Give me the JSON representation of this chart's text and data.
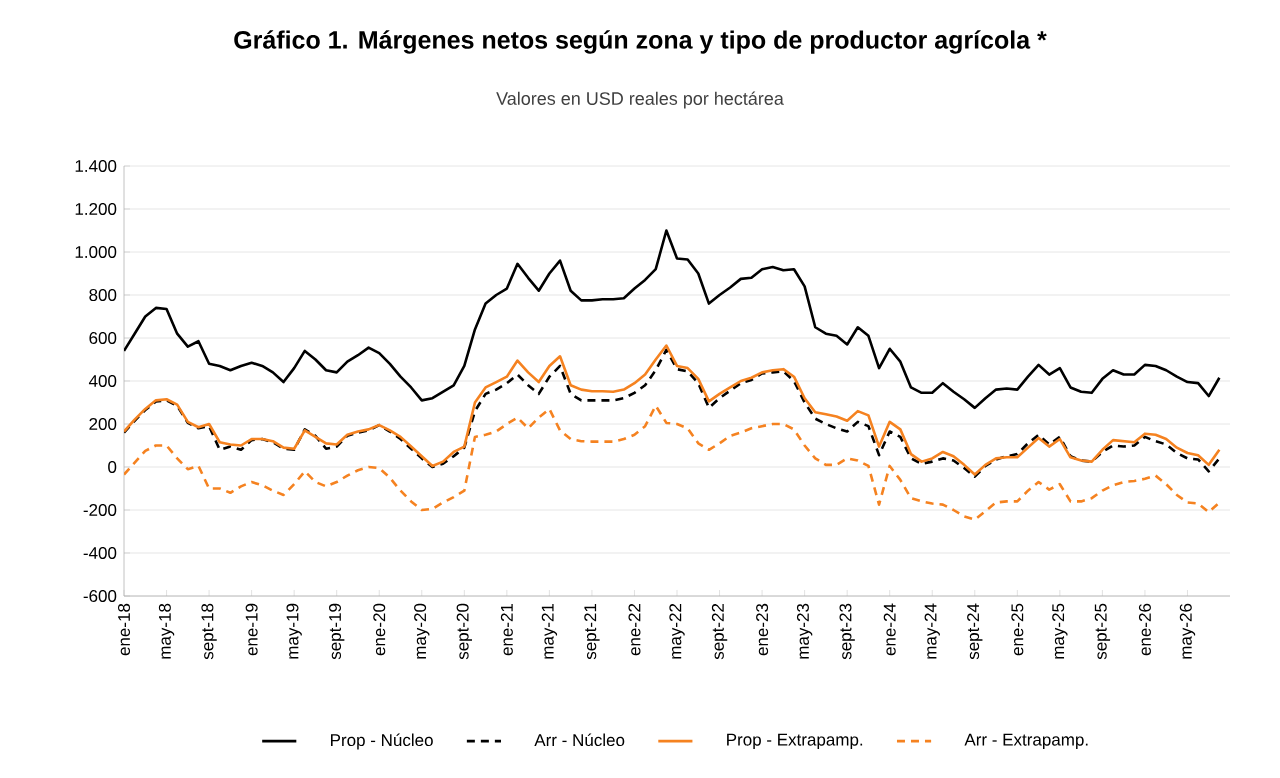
{
  "chart_data": {
    "type": "line",
    "title": "Gráfico 1. Márgenes netos según zona y tipo de productor agrícola *",
    "subtitle": "Valores en USD reales por hectárea",
    "categories": [
      "ene-18",
      null,
      null,
      null,
      "may-18",
      null,
      null,
      null,
      "sept-18",
      null,
      null,
      null,
      "ene-19",
      null,
      null,
      null,
      "may-19",
      null,
      null,
      null,
      "sept-19",
      null,
      null,
      null,
      "ene-20",
      null,
      null,
      null,
      "may-20",
      null,
      null,
      null,
      "sept-20",
      null,
      null,
      null,
      "ene-21",
      null,
      null,
      null,
      "may-21",
      null,
      null,
      null,
      "sept-21",
      null,
      null,
      null,
      "ene-22",
      null,
      null,
      null,
      "may-22",
      null,
      null,
      null,
      "sept-22",
      null,
      null,
      null,
      "ene-23",
      null,
      null,
      null,
      "may-23",
      null,
      null,
      null,
      "sept-23",
      null,
      null,
      null,
      "ene-24",
      null,
      null,
      null,
      "may-24",
      null,
      null,
      null,
      "sept-24",
      null,
      null,
      null,
      "ene-25",
      null,
      null,
      null,
      "may-25",
      null,
      null,
      null,
      "sept-25",
      null,
      null,
      null,
      "ene-26",
      null,
      null,
      null,
      "may-26",
      null,
      null,
      null
    ],
    "series": [
      {
        "name": "Prop - Núcleo",
        "color": "#000000",
        "line_style": "solid",
        "values": [
          540,
          620,
          700,
          740,
          735,
          620,
          560,
          585,
          480,
          470,
          450,
          470,
          485,
          470,
          440,
          395,
          460,
          540,
          500,
          450,
          440,
          490,
          520,
          555,
          530,
          480,
          420,
          370,
          310,
          320,
          350,
          380,
          470,
          640,
          760,
          800,
          830,
          945,
          880,
          820,
          900,
          960,
          820,
          775,
          775,
          780,
          780,
          785,
          830,
          870,
          920,
          1100,
          970,
          965,
          900,
          760,
          800,
          835,
          875,
          880,
          920,
          930,
          915,
          920,
          840,
          650,
          620,
          610,
          570,
          650,
          610,
          460,
          550,
          490,
          370,
          345,
          345,
          390,
          350,
          315,
          275,
          320,
          360,
          365,
          360,
          420,
          475,
          430,
          460,
          370,
          350,
          345,
          410,
          450,
          430,
          430,
          475,
          470,
          450,
          420,
          395,
          390,
          330,
          415
        ]
      },
      {
        "name": "Arr - Núcleo",
        "color": "#000000",
        "line_style": "dashed",
        "values": [
          160,
          215,
          265,
          305,
          310,
          285,
          205,
          180,
          190,
          80,
          95,
          80,
          125,
          130,
          115,
          85,
          80,
          175,
          145,
          85,
          95,
          145,
          160,
          170,
          195,
          165,
          130,
          85,
          40,
          0,
          15,
          50,
          90,
          260,
          340,
          360,
          390,
          430,
          380,
          340,
          420,
          470,
          340,
          310,
          310,
          310,
          310,
          320,
          345,
          380,
          450,
          545,
          455,
          445,
          390,
          275,
          320,
          355,
          390,
          405,
          435,
          440,
          445,
          400,
          300,
          225,
          200,
          180,
          165,
          210,
          190,
          55,
          165,
          140,
          40,
          15,
          25,
          40,
          30,
          -5,
          -45,
          5,
          35,
          50,
          60,
          110,
          150,
          105,
          140,
          50,
          30,
          25,
          70,
          100,
          95,
          100,
          140,
          120,
          105,
          65,
          40,
          35,
          -20,
          40
        ]
      },
      {
        "name": "Prop - Extrapamp.",
        "color": "#f58220",
        "line_style": "solid",
        "values": [
          165,
          220,
          270,
          310,
          315,
          290,
          210,
          185,
          200,
          115,
          105,
          100,
          130,
          130,
          120,
          90,
          85,
          170,
          140,
          110,
          105,
          150,
          165,
          175,
          195,
          170,
          140,
          95,
          50,
          5,
          25,
          70,
          95,
          300,
          370,
          395,
          420,
          495,
          440,
          395,
          470,
          515,
          380,
          360,
          352,
          352,
          350,
          360,
          390,
          430,
          500,
          565,
          470,
          460,
          410,
          305,
          340,
          370,
          400,
          415,
          440,
          450,
          455,
          420,
          320,
          255,
          245,
          235,
          215,
          260,
          240,
          95,
          210,
          175,
          60,
          25,
          40,
          70,
          50,
          10,
          -35,
          10,
          40,
          45,
          45,
          90,
          135,
          95,
          130,
          45,
          30,
          25,
          80,
          125,
          120,
          115,
          155,
          150,
          130,
          90,
          65,
          55,
          10,
          80
        ]
      },
      {
        "name": "Arr - Extrapamp.",
        "color": "#f58220",
        "line_style": "dashed",
        "values": [
          -35,
          20,
          75,
          100,
          100,
          40,
          -10,
          5,
          -100,
          -100,
          -120,
          -90,
          -70,
          -85,
          -110,
          -130,
          -80,
          -20,
          -70,
          -90,
          -70,
          -40,
          -15,
          0,
          -5,
          -50,
          -110,
          -160,
          -200,
          -195,
          -165,
          -140,
          -110,
          140,
          150,
          165,
          200,
          230,
          180,
          230,
          270,
          170,
          130,
          120,
          118,
          118,
          118,
          130,
          150,
          190,
          285,
          205,
          200,
          180,
          110,
          80,
          110,
          145,
          160,
          180,
          190,
          200,
          200,
          175,
          100,
          40,
          10,
          10,
          40,
          30,
          5,
          -175,
          5,
          -60,
          -145,
          -160,
          -170,
          -175,
          -200,
          -230,
          -245,
          -205,
          -165,
          -160,
          -160,
          -110,
          -70,
          -105,
          -80,
          -160,
          -160,
          -145,
          -110,
          -85,
          -70,
          -65,
          -55,
          -40,
          -80,
          -130,
          -165,
          -170,
          -210,
          -165
        ]
      }
    ],
    "ylim": [
      -600,
      1400
    ],
    "yticks": [
      -600,
      -400,
      -200,
      0,
      200,
      400,
      600,
      800,
      {
        "value": 1000,
        "label": "1.000"
      },
      {
        "value": 1200,
        "label": "1.200"
      },
      {
        "value": 1400,
        "label": "1.400"
      }
    ],
    "grid": "y",
    "legend": "bottom",
    "marker": "none"
  }
}
